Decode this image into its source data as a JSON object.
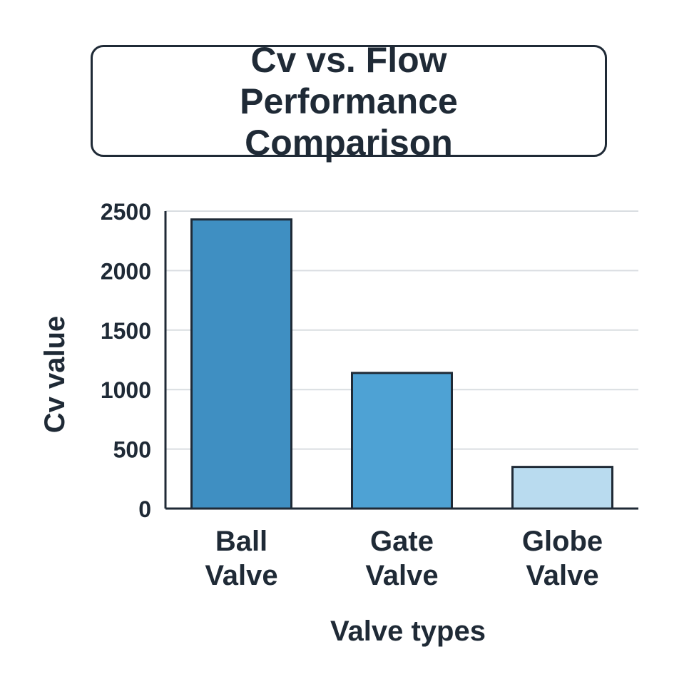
{
  "chart_data": {
    "type": "bar",
    "title": "Cv vs. Flow Performance Comparison",
    "xlabel": "Valve types",
    "ylabel": "Cv value",
    "categories": [
      "Ball Valve",
      "Gate Valve",
      "Globe Valve"
    ],
    "category_lines": [
      [
        "Ball",
        "Valve"
      ],
      [
        "Gate",
        "Valve"
      ],
      [
        "Globe",
        "Valve"
      ]
    ],
    "values": [
      2430,
      1140,
      350
    ],
    "ylim": [
      0,
      2500
    ],
    "yticks": [
      0,
      500,
      1000,
      1500,
      2000,
      2500
    ],
    "grid": true,
    "bar_colors": [
      "#3f8fc2",
      "#4ea2d4",
      "#b9dbef"
    ],
    "edge_color": "#1f2a36"
  }
}
